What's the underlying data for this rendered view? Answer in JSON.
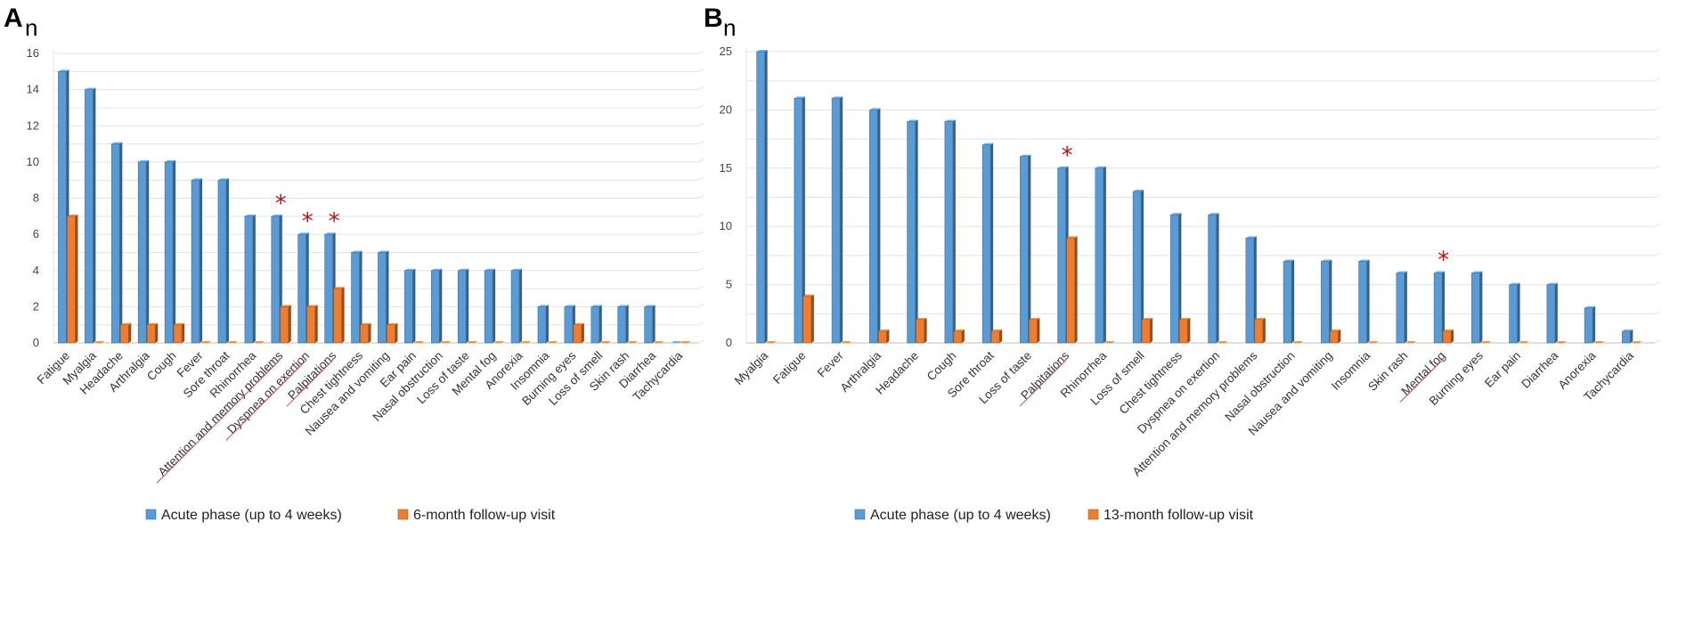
{
  "chart_data": [
    {
      "panel": "A",
      "type": "bar",
      "ylabel": "n",
      "ylim": [
        0,
        16
      ],
      "yticks": [
        0,
        2,
        4,
        6,
        8,
        10,
        12,
        14,
        16
      ],
      "grid": true,
      "legend_position": "bottom",
      "categories": [
        "Fatigue",
        "Myalgia",
        "Headache",
        "Arthralgia",
        "Cough",
        "Fever",
        "Sore throat",
        "Rhinorrhea",
        "Attention and memory problems",
        "Dyspnea on exertion",
        "Palpitations",
        "Chest tightness",
        "Nausea and vomiting",
        "Ear pain",
        "Nasal obstruction",
        "Loss of taste",
        "Mental fog",
        "Anorexia",
        "Insomnia",
        "Burning eyes",
        "Loss of smell",
        "Skin rash",
        "Diarrhea",
        "Tachycardia"
      ],
      "series": [
        {
          "name": "Acute phase (up to 4 weeks)",
          "color": "#5b9bd5",
          "values": [
            15,
            14,
            11,
            10,
            10,
            9,
            9,
            7,
            7,
            6,
            6,
            5,
            5,
            4,
            4,
            4,
            4,
            4,
            2,
            2,
            2,
            2,
            2,
            0
          ]
        },
        {
          "name": "6-month follow-up visit",
          "color": "#ed7d31",
          "values": [
            7,
            0,
            1,
            1,
            1,
            0,
            0,
            0,
            2,
            2,
            3,
            1,
            1,
            0,
            0,
            0,
            0,
            0,
            0,
            1,
            0,
            0,
            0,
            0
          ]
        }
      ],
      "significant": [
        "Attention and memory problems",
        "Dyspnea on exertion",
        "Palpitations"
      ],
      "annotation_symbol": "*"
    },
    {
      "panel": "B",
      "type": "bar",
      "ylabel": "n",
      "ylim": [
        0,
        25
      ],
      "yticks": [
        0,
        5,
        10,
        15,
        20,
        25
      ],
      "grid": true,
      "legend_position": "bottom",
      "categories": [
        "Myalgia",
        "Fatigue",
        "Fever",
        "Arthralgia",
        "Headache",
        "Cough",
        "Sore throat",
        "Loss of taste",
        "Palpitations",
        "Rhinorrhea",
        "Loss of smell",
        "Chest tightness",
        "Dyspnea on exertion",
        "Attention and memory problems",
        "Nasal obstruction",
        "Nausea and vomiting",
        "Insomnia",
        "Skin rash",
        "Mental fog",
        "Burning eyes",
        "Ear pain",
        "Diarrhea",
        "Anorexia",
        "Tachycardia"
      ],
      "series": [
        {
          "name": "Acute phase (up to 4 weeks)",
          "color": "#5b9bd5",
          "values": [
            25,
            21,
            21,
            20,
            19,
            19,
            17,
            16,
            15,
            15,
            13,
            11,
            11,
            9,
            7,
            7,
            7,
            6,
            6,
            6,
            5,
            5,
            3,
            1
          ]
        },
        {
          "name": "13-month follow-up visit",
          "color": "#ed7d31",
          "values": [
            0,
            4,
            0,
            1,
            2,
            1,
            1,
            2,
            9,
            0,
            2,
            2,
            0,
            2,
            0,
            1,
            0,
            0,
            1,
            0,
            0,
            0,
            0,
            0
          ]
        }
      ],
      "significant": [
        "Palpitations",
        "Mental fog"
      ],
      "annotation_symbol": "*"
    }
  ]
}
